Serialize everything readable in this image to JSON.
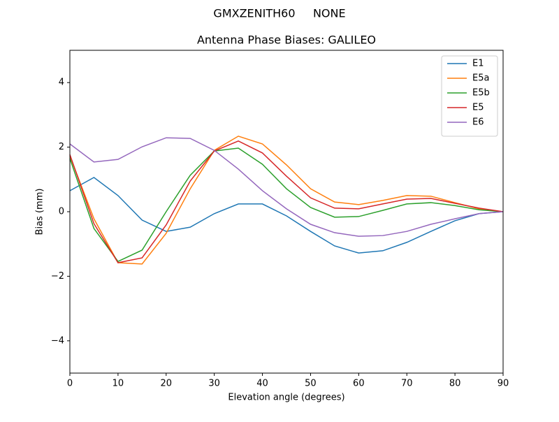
{
  "chart_data": {
    "type": "line",
    "suptitle": "GMXZENITH60     NONE",
    "title": "Antenna Phase Biases: GALILEO",
    "xlabel": "Elevation angle (degrees)",
    "ylabel": "Bias (mm)",
    "x": [
      0,
      5,
      10,
      15,
      20,
      25,
      30,
      35,
      40,
      45,
      50,
      55,
      60,
      65,
      70,
      75,
      80,
      85,
      90
    ],
    "series": [
      {
        "name": "E1",
        "color": "#1f77b4",
        "values": [
          0.65,
          1.06,
          0.5,
          -0.26,
          -0.61,
          -0.48,
          -0.06,
          0.24,
          0.24,
          -0.13,
          -0.61,
          -1.06,
          -1.28,
          -1.21,
          -0.95,
          -0.61,
          -0.28,
          -0.06,
          0
        ]
      },
      {
        "name": "E5a",
        "color": "#ff7f0e",
        "values": [
          1.73,
          -0.22,
          -1.58,
          -1.62,
          -0.67,
          0.71,
          1.9,
          2.34,
          2.1,
          1.45,
          0.71,
          0.3,
          0.22,
          0.35,
          0.5,
          0.48,
          0.28,
          0.09,
          0
        ]
      },
      {
        "name": "E5b",
        "color": "#2ca02c",
        "values": [
          1.65,
          -0.52,
          -1.54,
          -1.19,
          0,
          1.13,
          1.88,
          1.97,
          1.47,
          0.71,
          0.13,
          -0.17,
          -0.15,
          0.04,
          0.24,
          0.28,
          0.19,
          0.06,
          0
        ]
      },
      {
        "name": "E5",
        "color": "#d62728",
        "values": [
          1.77,
          -0.37,
          -1.58,
          -1.43,
          -0.41,
          0.95,
          1.88,
          2.19,
          1.82,
          1.1,
          0.43,
          0.11,
          0.09,
          0.24,
          0.39,
          0.41,
          0.26,
          0.11,
          0
        ]
      },
      {
        "name": "E6",
        "color": "#9467bd",
        "values": [
          2.1,
          1.54,
          1.62,
          2.01,
          2.29,
          2.27,
          1.9,
          1.32,
          0.65,
          0.09,
          -0.39,
          -0.65,
          -0.76,
          -0.74,
          -0.61,
          -0.39,
          -0.22,
          -0.06,
          0
        ]
      }
    ],
    "xlim": [
      0,
      90
    ],
    "xticks": [
      0,
      10,
      20,
      30,
      40,
      50,
      60,
      70,
      80,
      90
    ],
    "ylim": [
      -5,
      5
    ],
    "yticks": [
      {
        "value": -4,
        "label": "−4"
      },
      {
        "value": -2,
        "label": "−2"
      },
      0,
      2,
      4
    ],
    "grid": false,
    "legend": "upper-right"
  }
}
